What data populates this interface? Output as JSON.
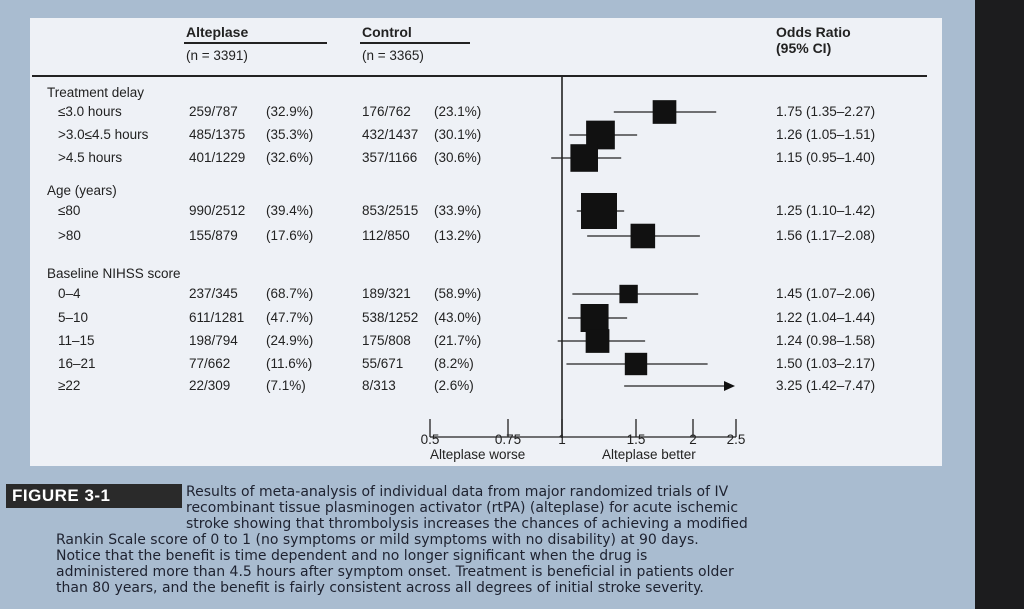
{
  "headers": {
    "alteplase": "Alteplase",
    "alteplase_n": "(n = 3391)",
    "control": "Control",
    "control_n": "(n = 3365)",
    "odds_ratio": "Odds Ratio",
    "ci": "(95% CI)"
  },
  "groups": [
    "Treatment delay",
    "Age (years)",
    "Baseline NIHSS score"
  ],
  "rows": [
    {
      "label": "≤3.0 hours",
      "alteplase": "259/787",
      "alteplase_pct": "(32.9%)",
      "control": "176/762",
      "control_pct": "(23.1%)",
      "or_text": "1.75 (1.35–2.27)"
    },
    {
      "label": ">3.0≤4.5 hours",
      "alteplase": "485/1375",
      "alteplase_pct": "(35.3%)",
      "control": "432/1437",
      "control_pct": "(30.1%)",
      "or_text": "1.26 (1.05–1.51)"
    },
    {
      "label": ">4.5 hours",
      "alteplase": "401/1229",
      "alteplase_pct": "(32.6%)",
      "control": "357/1166",
      "control_pct": "(30.6%)",
      "or_text": "1.15 (0.95–1.40)"
    },
    {
      "label": "≤80",
      "alteplase": "990/2512",
      "alteplase_pct": "(39.4%)",
      "control": "853/2515",
      "control_pct": "(33.9%)",
      "or_text": "1.25 (1.10–1.42)"
    },
    {
      "label": ">80",
      "alteplase": "155/879",
      "alteplase_pct": "(17.6%)",
      "control": "112/850",
      "control_pct": "(13.2%)",
      "or_text": "1.56 (1.17–2.08)"
    },
    {
      "label": "0–4",
      "alteplase": "237/345",
      "alteplase_pct": "(68.7%)",
      "control": "189/321",
      "control_pct": "(58.9%)",
      "or_text": "1.45 (1.07–2.06)"
    },
    {
      "label": "5–10",
      "alteplase": "611/1281",
      "alteplase_pct": "(47.7%)",
      "control": "538/1252",
      "control_pct": "(43.0%)",
      "or_text": "1.22 (1.04–1.44)"
    },
    {
      "label": "11–15",
      "alteplase": "198/794",
      "alteplase_pct": "(24.9%)",
      "control": "175/808",
      "control_pct": "(21.7%)",
      "or_text": "1.24 (0.98–1.58)"
    },
    {
      "label": "16–21",
      "alteplase": "77/662",
      "alteplase_pct": "(11.6%)",
      "control": "55/671",
      "control_pct": "(8.2%)",
      "or_text": "1.50 (1.03–2.17)"
    },
    {
      "label": "≥22",
      "alteplase": "22/309",
      "alteplase_pct": "(7.1%)",
      "control": "8/313",
      "control_pct": "(2.6%)",
      "or_text": "3.25 (1.42–7.47)"
    }
  ],
  "axis": {
    "ticks": [
      0.5,
      0.75,
      1,
      1.5,
      2,
      2.5
    ],
    "tick_labels": [
      "0.5",
      "0.75",
      "1",
      "1.5",
      "2",
      "2.5"
    ],
    "left_label": "Alteplase worse",
    "right_label": "Alteplase better"
  },
  "chart_data": {
    "type": "forest",
    "xlim": [
      0.5,
      2.5
    ],
    "reference_line": 1,
    "arrow_series": "≥22",
    "series": [
      {
        "name": "≤3.0 hours",
        "or": 1.75,
        "lo": 1.35,
        "hi": 2.27,
        "weight": 787
      },
      {
        "name": ">3.0≤4.5 hours",
        "or": 1.26,
        "lo": 1.05,
        "hi": 1.51,
        "weight": 1375
      },
      {
        "name": ">4.5 hours",
        "or": 1.15,
        "lo": 0.95,
        "hi": 1.4,
        "weight": 1229
      },
      {
        "name": "≤80",
        "or": 1.25,
        "lo": 1.1,
        "hi": 1.42,
        "weight": 2512
      },
      {
        "name": ">80",
        "or": 1.56,
        "lo": 1.17,
        "hi": 2.08,
        "weight": 879
      },
      {
        "name": "0–4",
        "or": 1.45,
        "lo": 1.07,
        "hi": 2.06,
        "weight": 345
      },
      {
        "name": "5–10",
        "or": 1.22,
        "lo": 1.04,
        "hi": 1.44,
        "weight": 1281
      },
      {
        "name": "11–15",
        "or": 1.24,
        "lo": 0.98,
        "hi": 1.58,
        "weight": 794
      },
      {
        "name": "16–21",
        "or": 1.5,
        "lo": 1.03,
        "hi": 2.17,
        "weight": 662
      },
      {
        "name": "≥22",
        "or": 3.25,
        "lo": 1.42,
        "hi": 7.47,
        "weight": 309
      }
    ]
  },
  "figure_label": "FIGURE 3-1",
  "caption_lines": [
    "Results of meta-analysis of individual data from major randomized trials of IV",
    "recombinant tissue plasminogen activator (rtPA) (alteplase) for acute ischemic",
    "stroke showing that thrombolysis increases the chances of achieving a modified",
    "Rankin Scale score of 0 to 1 (no symptoms or mild symptoms with no disability) at 90 days.",
    "Notice that the benefit is time dependent and no longer significant when the drug is",
    "administered more than 4.5 hours after symptom onset. Treatment is beneficial in patients older",
    "than 80 years, and the benefit is fairly consistent across all degrees of initial stroke severity."
  ]
}
